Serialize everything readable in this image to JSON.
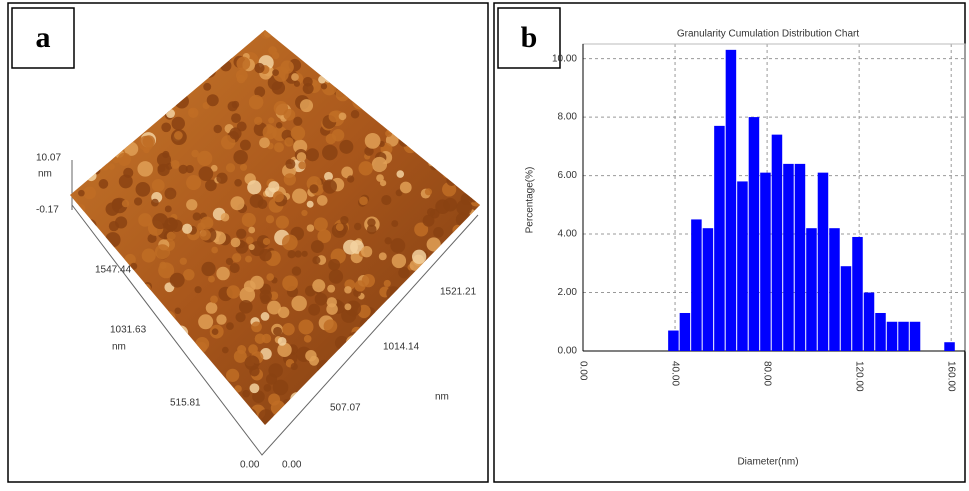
{
  "panel_a": {
    "label": "a",
    "z_labels": [
      "10.07",
      "nm",
      "-0.17"
    ],
    "left_axis": [
      "1547.44",
      "1031.63",
      "nm",
      "515.81",
      "0.00"
    ],
    "right_axis": [
      "0.00",
      "507.07",
      "1014.14",
      "1521.21",
      "nm"
    ]
  },
  "chart_data": {
    "type": "histogram",
    "panel_label": "b",
    "title": "Granularity Cumulation Distribution  Chart",
    "x_label": "Diameter(nm)",
    "y_label": "Percentage(%)",
    "bins": [
      37,
      42,
      47,
      52,
      57,
      62,
      67,
      72,
      77,
      82,
      87,
      92,
      97,
      102,
      107,
      112,
      117,
      122,
      127,
      132,
      137,
      142,
      147,
      152,
      157,
      162
    ],
    "values": [
      0.7,
      1.3,
      4.5,
      4.2,
      7.7,
      10.3,
      5.8,
      8.0,
      6.1,
      7.4,
      6.4,
      6.4,
      4.2,
      6.1,
      4.2,
      2.9,
      3.9,
      2.0,
      1.3,
      1.0,
      1.0,
      1.0,
      0,
      0,
      0.3
    ],
    "color": "#0000ff",
    "xlim": [
      0,
      166
    ],
    "xticks": [
      {
        "value": 0,
        "label": "0.00"
      },
      {
        "value": 40,
        "label": "40.00"
      },
      {
        "value": 80,
        "label": "80.00"
      },
      {
        "value": 120,
        "label": "120.00"
      },
      {
        "value": 160,
        "label": "160.00"
      }
    ],
    "ylim": [
      0,
      10.5
    ],
    "yticks": [
      {
        "value": 0,
        "label": "0.00"
      },
      {
        "value": 2,
        "label": "2.00"
      },
      {
        "value": 4,
        "label": "4.00"
      },
      {
        "value": 6,
        "label": "6.00"
      },
      {
        "value": 8,
        "label": "8.00"
      },
      {
        "value": 10,
        "label": "10.00"
      }
    ],
    "grid": true
  }
}
